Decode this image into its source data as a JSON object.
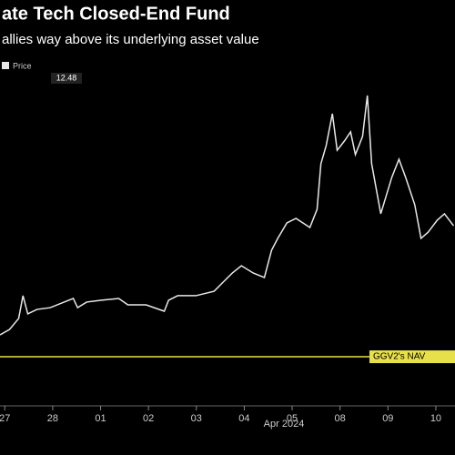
{
  "chart_data": {
    "type": "line",
    "title": "ate Tech Closed-End Fund",
    "subtitle": "allies way above its underlying asset value",
    "x_axis_label": "Apr 2024",
    "price_label": "12.48",
    "xlim": [
      -0.1,
      9.4
    ],
    "ylim": [
      0,
      24
    ],
    "xticks": [
      {
        "value": 0,
        "label": "27"
      },
      {
        "value": 1,
        "label": "28"
      },
      {
        "value": 2,
        "label": "01"
      },
      {
        "value": 3,
        "label": "02"
      },
      {
        "value": 4,
        "label": "03"
      },
      {
        "value": 5,
        "label": "04"
      },
      {
        "value": 6,
        "label": "05"
      },
      {
        "value": 7,
        "label": "08"
      },
      {
        "value": 8,
        "label": "09"
      },
      {
        "value": 9,
        "label": "10"
      }
    ],
    "series": [
      {
        "name": "Price",
        "color": "#e8e8e8",
        "x": [
          -0.1,
          0.1,
          0.29,
          0.38,
          0.48,
          0.67,
          0.95,
          1.24,
          1.43,
          1.52,
          1.71,
          2.0,
          2.38,
          2.57,
          2.95,
          3.33,
          3.42,
          3.61,
          3.99,
          4.37,
          4.56,
          4.75,
          4.94,
          5.19,
          5.42,
          5.57,
          5.7,
          5.89,
          6.08,
          6.37,
          6.52,
          6.6,
          6.71,
          6.84,
          6.94,
          7.09,
          7.22,
          7.32,
          7.47,
          7.57,
          7.66,
          7.85,
          8.08,
          8.23,
          8.37,
          8.56,
          8.69,
          8.84,
          9.03,
          9.18,
          9.37
        ],
        "values": [
          5.67,
          6.0,
          6.67,
          8.06,
          6.95,
          7.22,
          7.33,
          7.67,
          7.89,
          7.33,
          7.67,
          7.78,
          7.89,
          7.5,
          7.5,
          7.11,
          7.78,
          8.06,
          8.06,
          8.33,
          8.89,
          9.44,
          9.89,
          9.44,
          9.17,
          10.83,
          11.56,
          12.5,
          12.78,
          12.22,
          13.33,
          16.11,
          17.22,
          19.17,
          16.94,
          17.5,
          18.06,
          16.67,
          17.78,
          20.28,
          16.11,
          13.06,
          15.28,
          16.39,
          15.28,
          13.61,
          11.56,
          11.94,
          12.67,
          13.06,
          12.33
        ]
      },
      {
        "name": "GGV2's NAV",
        "color": "#e8e04a",
        "axis_label": true,
        "x": [
          -0.1,
          9.4
        ],
        "values": [
          4.33,
          4.33
        ]
      }
    ]
  }
}
